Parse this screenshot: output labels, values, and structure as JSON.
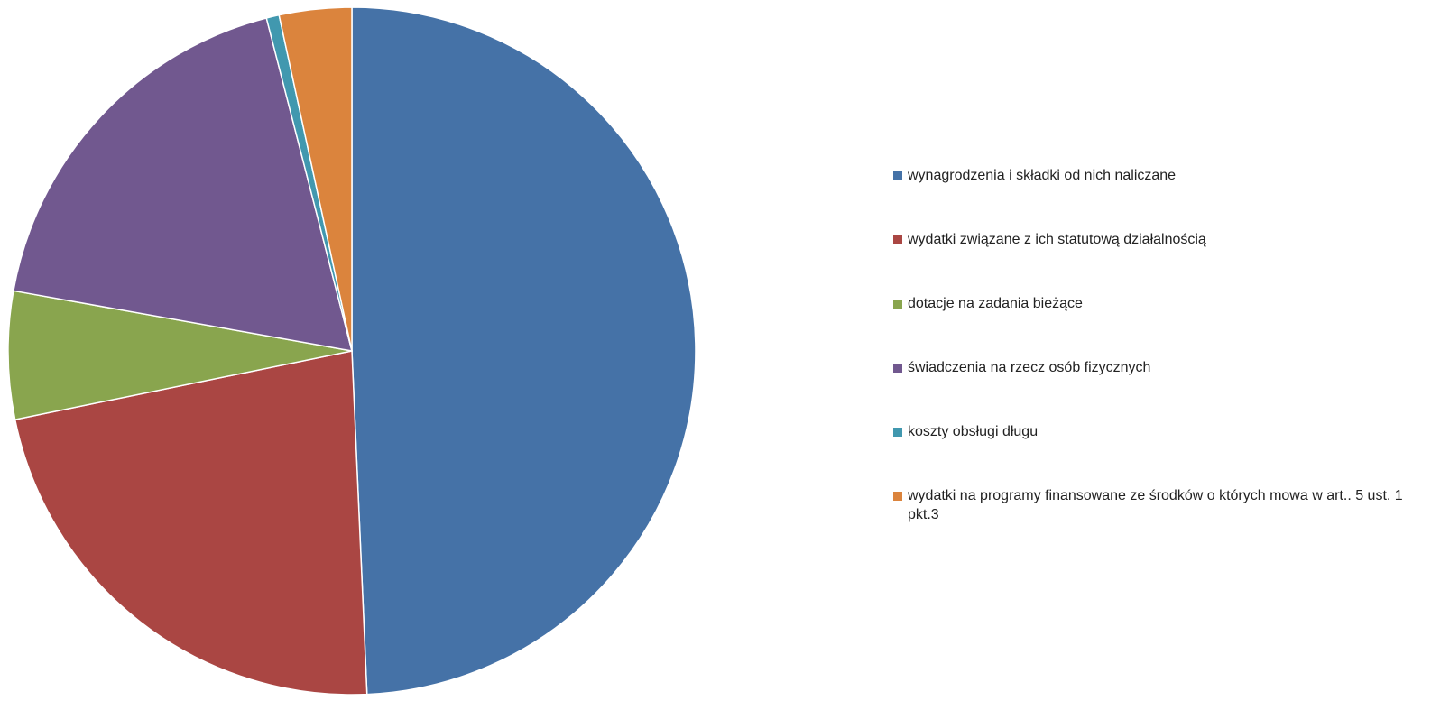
{
  "chart_data": {
    "type": "pie",
    "title": "",
    "start_angle_deg": 0,
    "direction": "clockwise",
    "legend_position": "right",
    "slices": [
      {
        "label": "wynagrodzenia i składki od nich naliczane",
        "value": 49.3,
        "color": "#4572A7"
      },
      {
        "label": "wydatki związane z ich statutową działalnością",
        "value": 22.5,
        "color": "#AA4643"
      },
      {
        "label": "dotacje na zadania bieżące",
        "value": 6.0,
        "color": "#89A54E"
      },
      {
        "label": "świadczenia na rzecz osób fizycznych",
        "value": 18.2,
        "color": "#71588F"
      },
      {
        "label": "koszty obsługi długu",
        "value": 0.6,
        "color": "#4198AF"
      },
      {
        "label": "wydatki na programy finansowane ze środków o których mowa w art.. 5 ust. 1 pkt.3",
        "value": 3.4,
        "color": "#DB843D"
      }
    ]
  }
}
